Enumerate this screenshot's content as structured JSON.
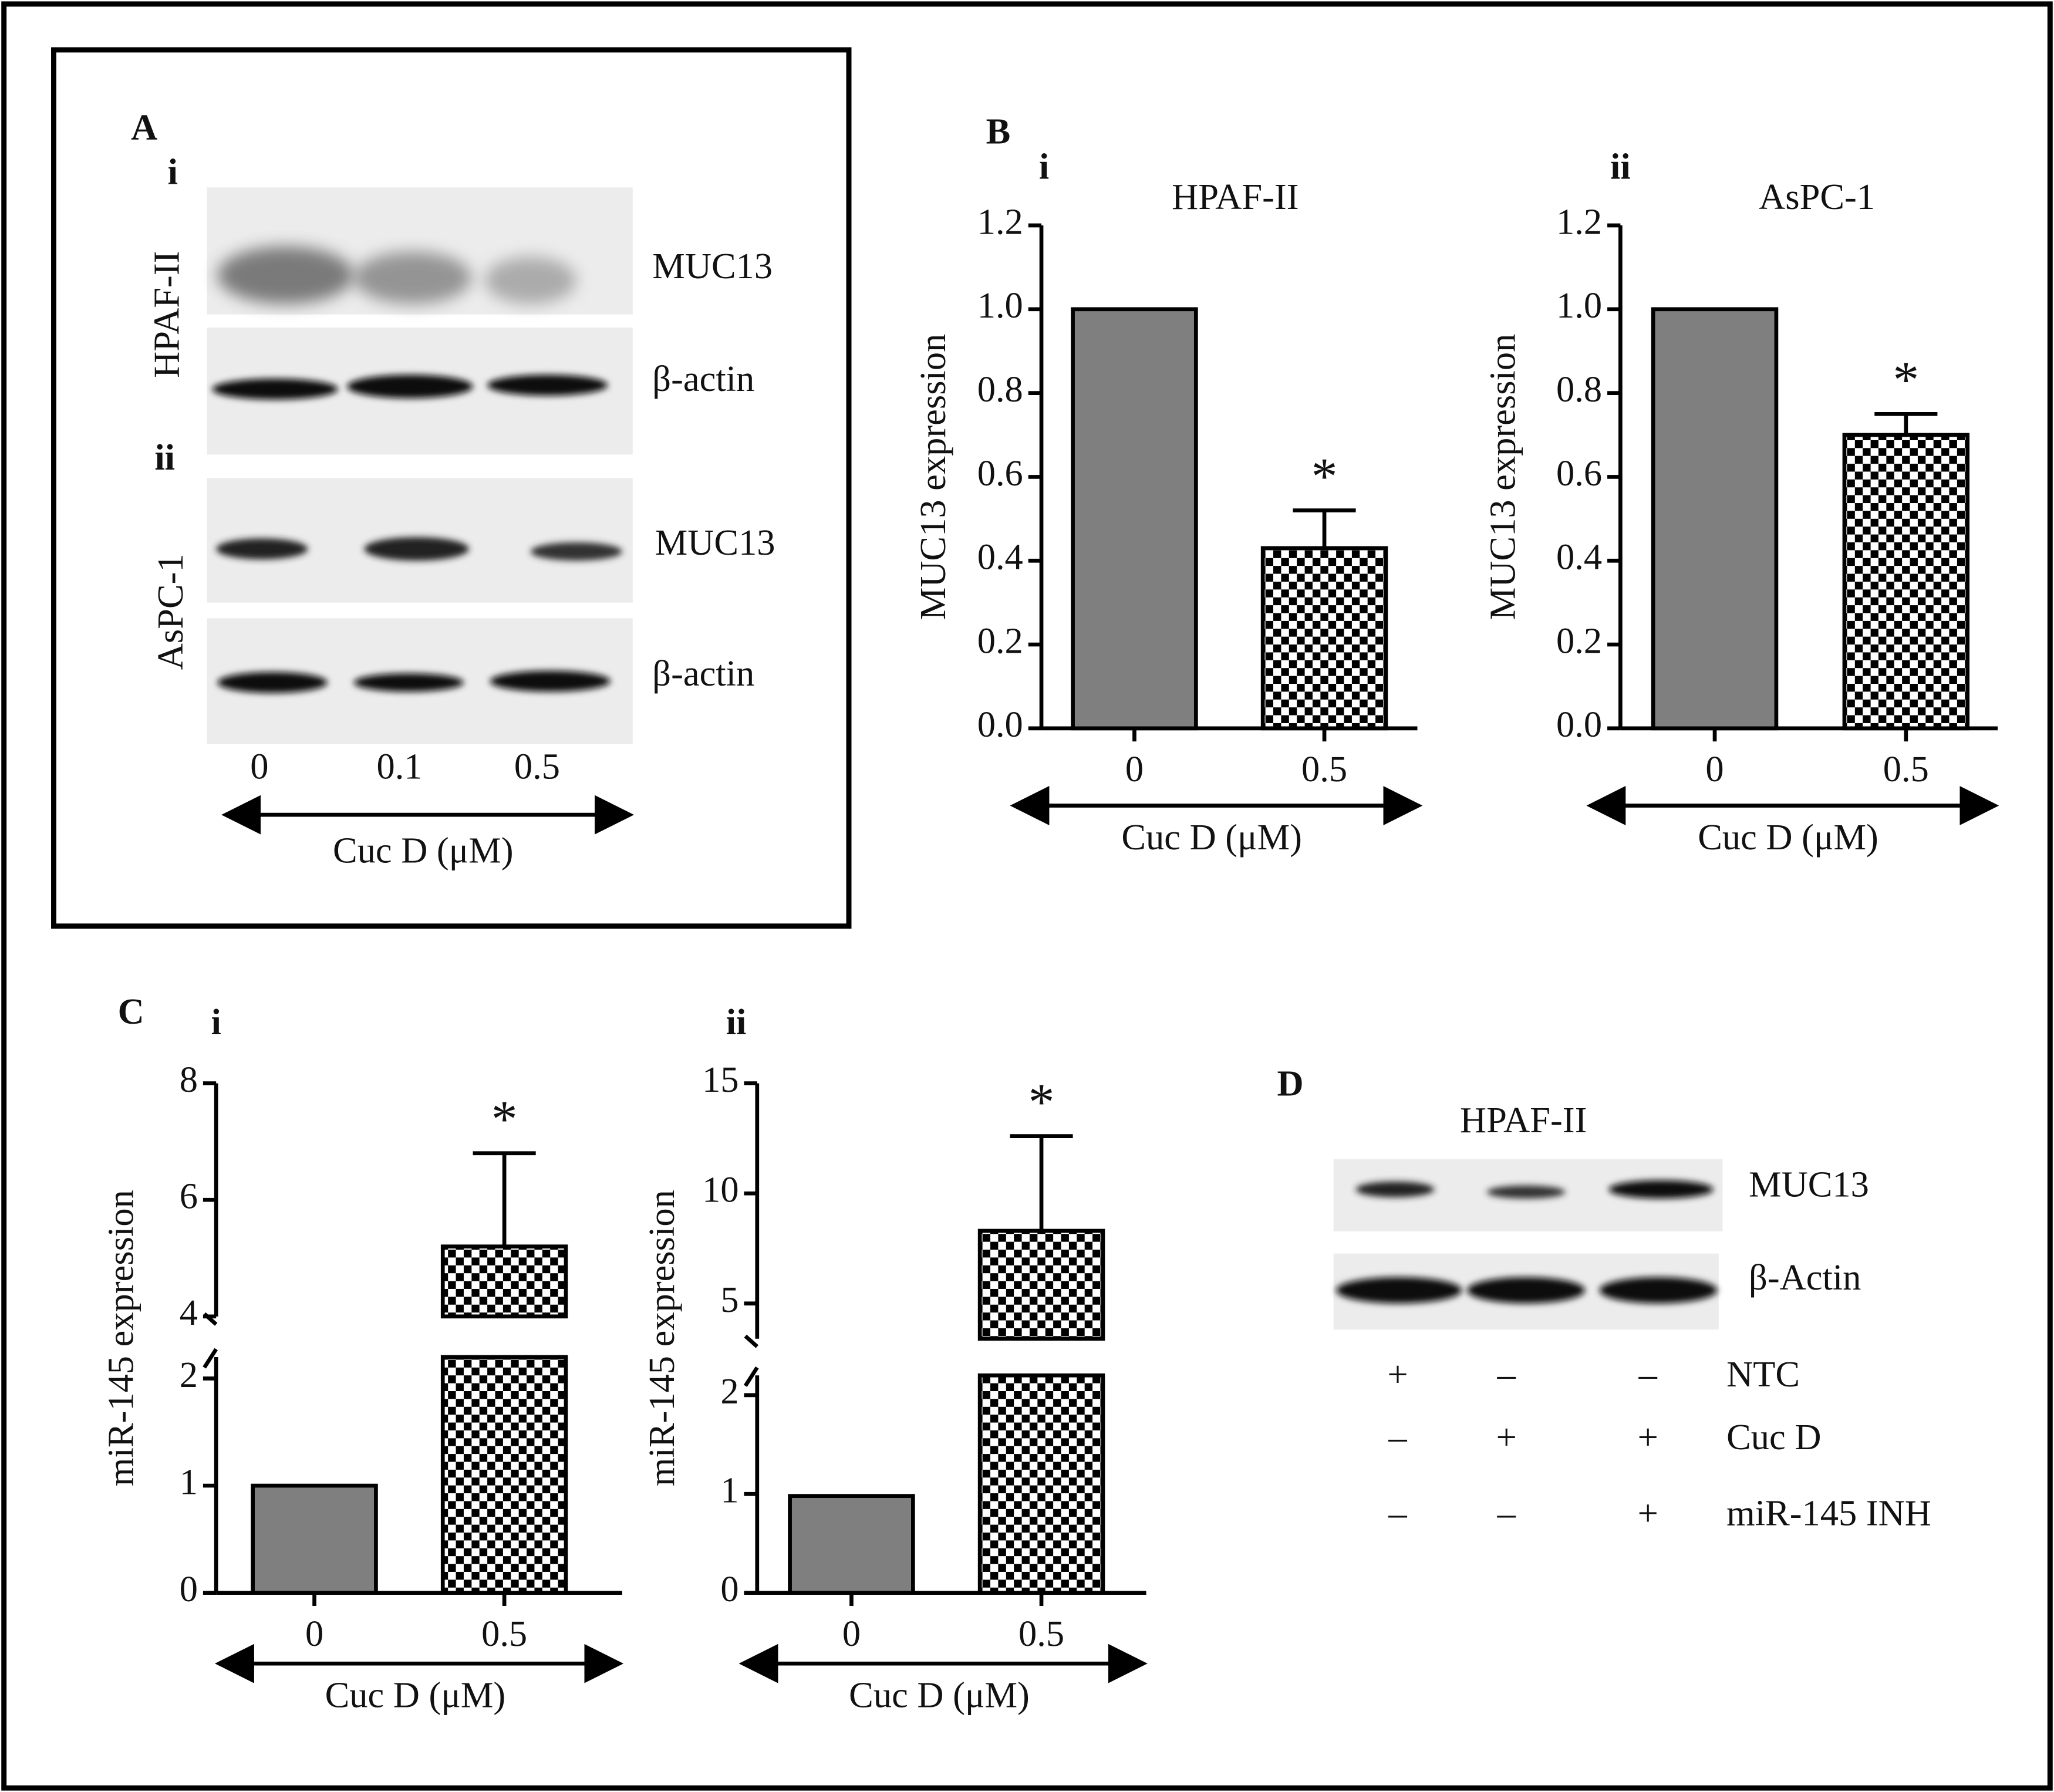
{
  "chart_data": [
    {
      "type": "bar",
      "panel": "B",
      "sub_label": "i",
      "title": "HPAF-II",
      "ylabel": "MUC13 expression",
      "xlabel": "Cuc D (μM)",
      "categories": [
        "0",
        "0.5"
      ],
      "values": [
        1.0,
        0.43
      ],
      "errors": [
        0,
        0.09
      ],
      "colors": [
        "#7f7f7f",
        "#000000"
      ],
      "patterns": [
        "solid",
        "checkerboard"
      ],
      "annotation": "*",
      "ylim": [
        0,
        1.2
      ],
      "yticks": [
        {
          "value": 0,
          "label": "0.0"
        },
        {
          "value": 0.2,
          "label": "0.2"
        },
        {
          "value": 0.4,
          "label": "0.4"
        },
        {
          "value": 0.6,
          "label": "0.6"
        },
        {
          "value": 0.8,
          "label": "0.8"
        },
        {
          "value": 1.0,
          "label": "1.0"
        },
        {
          "value": 1.2,
          "label": "1.2"
        }
      ]
    },
    {
      "type": "bar",
      "sub_label": "ii",
      "title": "AsPC-1",
      "ylabel": "MUC13 expression",
      "xlabel": "Cuc D (μM)",
      "categories": [
        "0",
        "0.5"
      ],
      "values": [
        1.0,
        0.7
      ],
      "errors": [
        0,
        0.05
      ],
      "colors": [
        "#7f7f7f",
        "#000000"
      ],
      "patterns": [
        "solid",
        "checkerboard"
      ],
      "annotation": "*",
      "ylim": [
        0,
        1.2
      ],
      "yticks": [
        {
          "value": 0,
          "label": "0.0"
        },
        {
          "value": 0.2,
          "label": "0.2"
        },
        {
          "value": 0.4,
          "label": "0.4"
        },
        {
          "value": 0.6,
          "label": "0.6"
        },
        {
          "value": 0.8,
          "label": "0.8"
        },
        {
          "value": 1.0,
          "label": "1.0"
        },
        {
          "value": 1.2,
          "label": "1.2"
        }
      ]
    },
    {
      "type": "bar",
      "panel": "C",
      "sub_label": "i",
      "ylabel": "miR-145 expression",
      "xlabel": "Cuc D (μM)",
      "categories": [
        "0",
        "0.5"
      ],
      "values": [
        1,
        5.2
      ],
      "errors": [
        0,
        1.6
      ],
      "colors": [
        "#7f7f7f",
        "#000000"
      ],
      "patterns": [
        "solid",
        "checkerboard"
      ],
      "annotation": "*",
      "ylim": [
        0,
        8
      ],
      "ybreak": [
        2.2,
        4
      ],
      "yticks": [
        0,
        1,
        2,
        4,
        6,
        8
      ]
    },
    {
      "type": "bar",
      "sub_label": "ii",
      "ylabel": "miR-145 expression",
      "xlabel": "Cuc D (μM)",
      "categories": [
        "0",
        "0.5"
      ],
      "values": [
        0.98,
        8.3
      ],
      "errors": [
        0,
        4.3
      ],
      "colors": [
        "#7f7f7f",
        "#000000"
      ],
      "patterns": [
        "solid",
        "checkerboard"
      ],
      "annotation": "*",
      "ylim": [
        0,
        15
      ],
      "ybreak": [
        2.2,
        3.4
      ],
      "yticks": [
        0,
        1,
        2,
        5,
        10,
        15
      ]
    }
  ],
  "panel_a": {
    "label": "A",
    "sub_labels": [
      "i",
      "ii"
    ],
    "cell_lines": [
      "HPAF-II",
      "AsPC-1"
    ],
    "proteins": [
      "MUC13",
      "β-actin",
      "MUC13",
      "β-actin"
    ],
    "doses": [
      "0",
      "0.1",
      "0.5"
    ],
    "xlabel": "Cuc D (μM)"
  },
  "panel_d": {
    "label": "D",
    "title": "HPAF-II",
    "proteins": [
      "MUC13",
      "β-Actin"
    ],
    "rows": [
      {
        "name": "NTC",
        "signs": [
          "+",
          "–",
          "–"
        ]
      },
      {
        "name": "Cuc D",
        "signs": [
          "–",
          "+",
          "+"
        ]
      },
      {
        "name": "miR-145 INH",
        "signs": [
          "–",
          "–",
          "+"
        ]
      }
    ]
  }
}
